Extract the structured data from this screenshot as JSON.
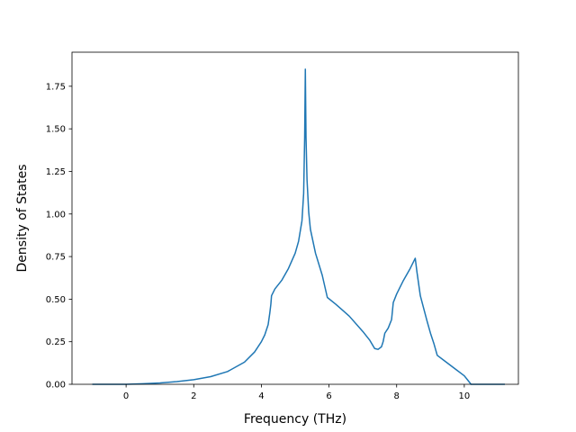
{
  "chart_data": {
    "type": "line",
    "title": "",
    "xlabel": "Frequency (THz)",
    "ylabel": "Density of States",
    "xlim": [
      -1.6,
      11.6
    ],
    "ylim": [
      0,
      1.95
    ],
    "grid": false,
    "legend": "none",
    "xticks": [
      0,
      2,
      4,
      6,
      8,
      10
    ],
    "xtick_labels": [
      "0",
      "2",
      "4",
      "6",
      "8",
      "10"
    ],
    "yticks": [
      0,
      0.25,
      0.5,
      0.75,
      1.0,
      1.25,
      1.5,
      1.75
    ],
    "ytick_labels": [
      "0.00",
      "0.25",
      "0.50",
      "0.75",
      "1.00",
      "1.25",
      "1.50",
      "1.75"
    ],
    "series": [
      {
        "color": "#1f77b4",
        "x": [
          -1.0,
          0.0,
          0.5,
          1.0,
          1.5,
          2.0,
          2.5,
          3.0,
          3.5,
          3.8,
          4.0,
          4.1,
          4.2,
          4.25,
          4.28,
          4.3,
          4.4,
          4.6,
          4.8,
          5.0,
          5.1,
          5.2,
          5.25,
          5.28,
          5.3,
          5.32,
          5.35,
          5.4,
          5.45,
          5.6,
          5.8,
          5.95,
          6.2,
          6.6,
          7.0,
          7.2,
          7.35,
          7.45,
          7.55,
          7.6,
          7.65,
          7.75,
          7.85,
          7.9,
          8.0,
          8.2,
          8.4,
          8.55,
          8.6,
          8.7,
          8.9,
          9.0,
          9.1,
          9.2,
          9.4,
          9.8,
          10.0,
          10.1,
          10.2,
          10.5,
          11.2
        ],
        "y": [
          0.0,
          0.0,
          0.003,
          0.008,
          0.016,
          0.027,
          0.045,
          0.075,
          0.13,
          0.19,
          0.25,
          0.29,
          0.35,
          0.42,
          0.47,
          0.52,
          0.56,
          0.61,
          0.68,
          0.77,
          0.84,
          0.96,
          1.12,
          1.45,
          1.85,
          1.45,
          1.2,
          1.01,
          0.91,
          0.77,
          0.64,
          0.51,
          0.47,
          0.4,
          0.31,
          0.26,
          0.21,
          0.205,
          0.22,
          0.25,
          0.3,
          0.33,
          0.38,
          0.48,
          0.53,
          0.61,
          0.68,
          0.74,
          0.66,
          0.52,
          0.37,
          0.3,
          0.24,
          0.17,
          0.14,
          0.08,
          0.05,
          0.025,
          0.0,
          0.0,
          0.0
        ]
      }
    ]
  }
}
